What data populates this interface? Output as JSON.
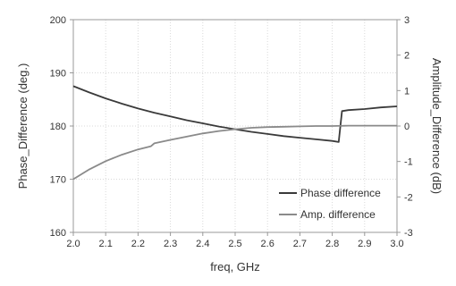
{
  "chart_data": {
    "type": "line",
    "xlabel": "freq, GHz",
    "ylabel_left": "Phase_Difference (deg.)",
    "ylabel_right": "Amplitude_Difference (dB)",
    "xlim": [
      2.0,
      3.0
    ],
    "ylim_left": [
      160,
      200
    ],
    "ylim_right": [
      -3,
      3
    ],
    "x_ticks": [
      "2.0",
      "2.1",
      "2.2",
      "2.3",
      "2.4",
      "2.5",
      "2.6",
      "2.7",
      "2.8",
      "2.9",
      "3.0"
    ],
    "y_left_ticks": [
      "160",
      "170",
      "180",
      "190",
      "200"
    ],
    "y_right_ticks": [
      "-3",
      "-2",
      "-1",
      "0",
      "1",
      "2",
      "3"
    ],
    "grid": true,
    "legend_position": "bottom-right",
    "series": [
      {
        "name": "Phase difference",
        "axis": "left",
        "color": "#3a3a3a",
        "x": [
          2.0,
          2.05,
          2.1,
          2.15,
          2.2,
          2.25,
          2.3,
          2.35,
          2.4,
          2.45,
          2.5,
          2.55,
          2.6,
          2.65,
          2.7,
          2.75,
          2.8,
          2.82,
          2.825,
          2.83,
          2.85,
          2.9,
          2.95,
          3.0
        ],
        "values": [
          187.5,
          186.3,
          185.2,
          184.2,
          183.3,
          182.5,
          181.8,
          181.1,
          180.5,
          179.9,
          179.4,
          178.9,
          178.5,
          178.1,
          177.8,
          177.5,
          177.2,
          177.0,
          180.0,
          182.8,
          183.0,
          183.2,
          183.5,
          183.7
        ]
      },
      {
        "name": "Amp. difference",
        "axis": "right",
        "color": "#8a8a8a",
        "x": [
          2.0,
          2.05,
          2.1,
          2.15,
          2.2,
          2.24,
          2.25,
          2.3,
          2.35,
          2.4,
          2.45,
          2.5,
          2.55,
          2.6,
          2.65,
          2.7,
          2.75,
          2.8,
          2.85,
          2.9,
          2.95,
          3.0
        ],
        "values": [
          -1.5,
          -1.22,
          -0.99,
          -0.81,
          -0.66,
          -0.57,
          -0.49,
          -0.39,
          -0.3,
          -0.21,
          -0.14,
          -0.09,
          -0.05,
          -0.03,
          -0.02,
          -0.01,
          0.0,
          0.0,
          0.01,
          0.01,
          0.01,
          0.01
        ]
      }
    ]
  }
}
